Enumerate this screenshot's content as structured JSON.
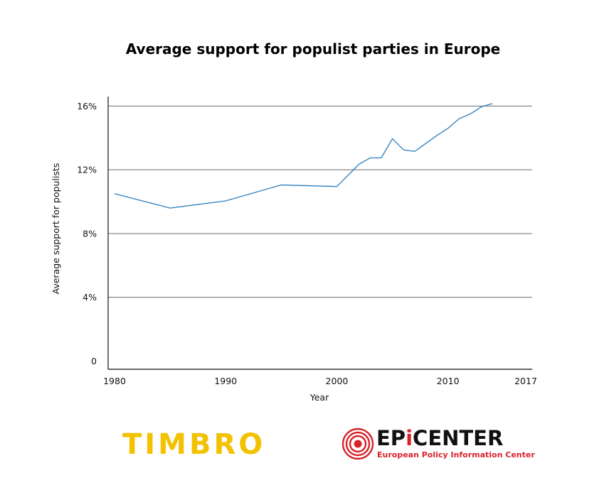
{
  "chart_data": {
    "type": "line",
    "title": "Average support for populist parties in Europe",
    "xlabel": "Year",
    "ylabel": "Average support for populists",
    "xlim": [
      1979,
      2017
    ],
    "ylim": [
      0,
      16.5
    ],
    "x_ticks": [
      {
        "value": 1980,
        "label": "1980"
      },
      {
        "value": 1990,
        "label": "1990"
      },
      {
        "value": 2000,
        "label": "2000"
      },
      {
        "value": 2010,
        "label": "2010"
      },
      {
        "value": 2017,
        "label": "2017"
      }
    ],
    "y_ticks": [
      {
        "value": 0,
        "label": "0"
      },
      {
        "value": 4,
        "label": "4%"
      },
      {
        "value": 8,
        "label": "8%"
      },
      {
        "value": 12,
        "label": "12%"
      },
      {
        "value": 16,
        "label": "16%"
      }
    ],
    "grid": "horizontal",
    "legend": "none",
    "line_color": "#2a7fc1",
    "series": [
      {
        "x": [
          1980,
          1985,
          1990,
          1995,
          2000,
          2002,
          2003,
          2004,
          2005,
          2006,
          2007,
          2008,
          2009,
          2010,
          2011,
          2012,
          2013,
          2014
        ],
        "values": [
          10.5,
          9.6,
          10.05,
          11.05,
          10.95,
          12.35,
          12.75,
          12.75,
          13.95,
          13.25,
          13.15,
          13.65,
          14.15,
          14.6,
          15.2,
          15.5,
          15.95,
          16.15
        ]
      }
    ]
  },
  "logos": {
    "timbro": {
      "text": "TIMBRO",
      "color": "#f2c200"
    },
    "epicenter": {
      "word_left": "EP",
      "word_i": "i",
      "word_right": "CENTER",
      "subtitle": "European Policy Information Center",
      "accent": "#d8232a"
    }
  }
}
